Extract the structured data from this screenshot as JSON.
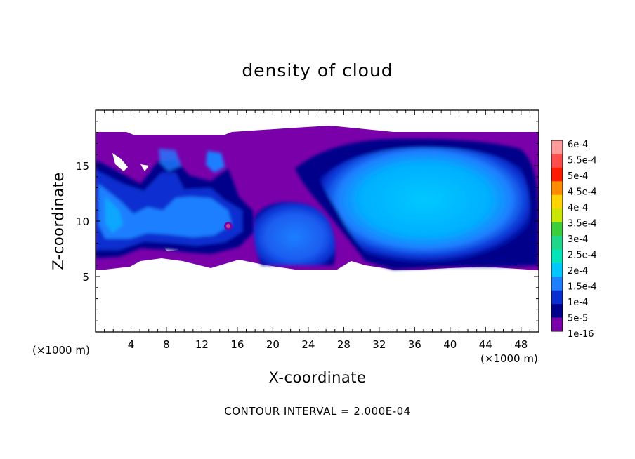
{
  "chart_data": {
    "type": "heatmap",
    "title": "density of cloud",
    "xlabel": "X-coordinate",
    "ylabel": "Z-coordinate",
    "x_unit": "(×1000 m)",
    "y_unit": "(×1000 m)",
    "xlim": [
      0,
      50
    ],
    "ylim": [
      0,
      20
    ],
    "x_ticks": [
      4,
      8,
      12,
      16,
      20,
      24,
      28,
      32,
      36,
      40,
      44,
      48
    ],
    "y_ticks": [
      5,
      10,
      15
    ],
    "contour_interval_text": "CONTOUR INTERVAL = 2.000E-04",
    "colorbar": {
      "labels": [
        "6e-4",
        "5.5e-4",
        "5e-4",
        "4.5e-4",
        "4e-4",
        "3.5e-4",
        "3e-4",
        "2.5e-4",
        "2e-4",
        "1.5e-4",
        "1e-4",
        "5e-5",
        "1e-16"
      ],
      "colors": [
        "#ff9a9a",
        "#ff4d4d",
        "#ff1a00",
        "#ff8c00",
        "#ffd400",
        "#c8e600",
        "#3ccd3c",
        "#1fd68a",
        "#00e6b8",
        "#00c8ff",
        "#1e7fff",
        "#0a2fd0",
        "#00008b",
        "#7a00aa"
      ]
    },
    "regions": [
      {
        "name": "left cloud cluster",
        "x_range": [
          0,
          19
        ],
        "z_range": [
          6,
          15.5
        ],
        "level": "5e-5 to 1.5e-4"
      },
      {
        "name": "central cell",
        "x_range": [
          18,
          27
        ],
        "z_range": [
          6,
          11.5
        ],
        "level": "1e-4 to 1.5e-4"
      },
      {
        "name": "large anvil cloud",
        "x_range": [
          26,
          50
        ],
        "z_range": [
          5.8,
          17.8
        ],
        "level": "1.5e-4 to 2e-4"
      },
      {
        "name": "cloud envelope",
        "x_range": [
          0,
          50
        ],
        "z_range": [
          5.8,
          18
        ],
        "level": "1e-16"
      }
    ]
  }
}
